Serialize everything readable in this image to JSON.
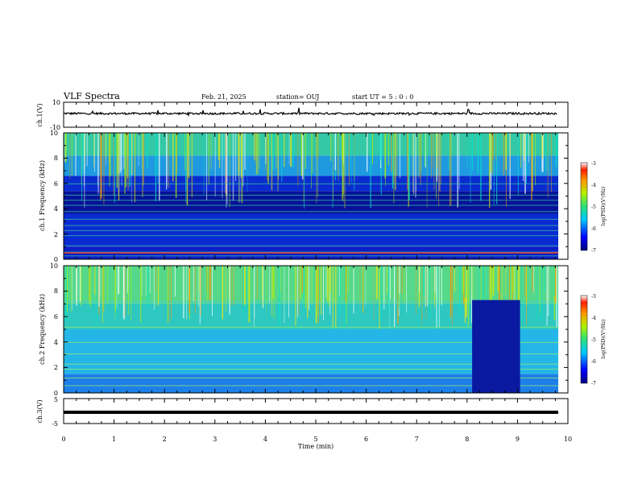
{
  "header": {
    "title": "VLF Spectra",
    "date": "Feb. 21, 2025",
    "station": "station= OUJ",
    "start": "start  UT =   5 : 0  : 0"
  },
  "chart_data": [
    {
      "type": "line",
      "name": "ch.1 waveform",
      "ylabel": "ch.1(V)",
      "ylim": [
        -10,
        10
      ],
      "yticks": [
        "10",
        "0",
        "-10"
      ],
      "y_level": 1,
      "color": "#000000"
    },
    {
      "type": "heatmap",
      "name": "ch.1 spectrogram",
      "ylabel": "ch.1 Frequency (kHz)",
      "ylim": [
        0,
        10
      ],
      "yticks": [
        "0",
        "2",
        "4",
        "6",
        "8",
        "10"
      ],
      "colorbar": {
        "label": "log(PSD)(V²/Hz)",
        "min": -7,
        "max": -3,
        "ticks": [
          "-3",
          "-4",
          "-5",
          "-6",
          "-7"
        ]
      }
    },
    {
      "type": "heatmap",
      "name": "ch.2 spectrogram",
      "ylabel": "ch.2 Frequency (kHz)",
      "ylim": [
        0,
        10
      ],
      "yticks": [
        "0",
        "2",
        "4",
        "6",
        "8",
        "10"
      ],
      "quiet_interval_min": [
        8.1,
        9.05
      ],
      "colorbar": {
        "label": "log(PSD)(V²/Hz)",
        "min": -7,
        "max": -3,
        "ticks": [
          "-3",
          "-4",
          "-5",
          "-6",
          "-7"
        ]
      }
    },
    {
      "type": "line",
      "name": "ch.3 level",
      "ylabel": "ch.3(V)",
      "ylim": [
        -5,
        5
      ],
      "yticks": [
        "5",
        "0",
        "-5"
      ],
      "y_level": -0.5,
      "color": "#000000"
    }
  ],
  "x_axis": {
    "label": "Time (min)",
    "xlim": [
      0,
      10
    ],
    "ticks": [
      "0",
      "1",
      "2",
      "3",
      "4",
      "5",
      "6",
      "7",
      "8",
      "9",
      "10"
    ]
  },
  "colors": {
    "ink": "#000000",
    "background": "#ffffff"
  }
}
